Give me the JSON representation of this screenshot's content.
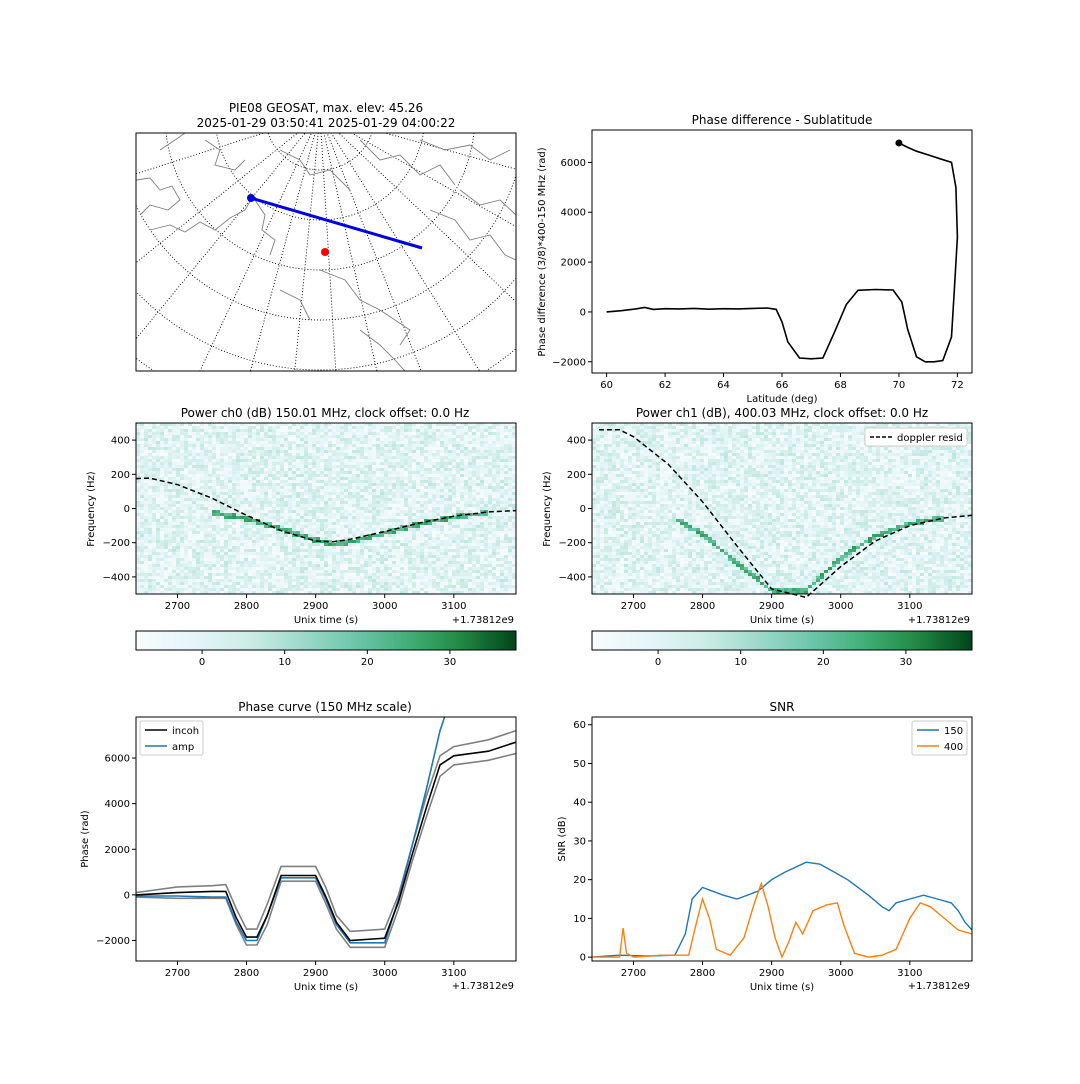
{
  "map_panel": {
    "title_line1": "PIE08 GEOSAT, max. elev: 45.26",
    "title_line2": "2025-01-29 03:50:41 2025-01-29 04:00:22",
    "colors": {
      "track": "#0000dd",
      "station": "#ff0000",
      "coast": "#888888",
      "grid": "#000000"
    }
  },
  "phase_sublat": {
    "title": "Phase difference - Sublatitude",
    "xlabel": "Latitude (deg)",
    "ylabel": "Phase difference (3/8)*400-150 MHz (rad)",
    "xticks": [
      "60",
      "62",
      "64",
      "66",
      "68",
      "70",
      "72"
    ],
    "yticks": [
      "−2000",
      "0",
      "2000",
      "4000",
      "6000"
    ]
  },
  "power_ch0": {
    "title": "Power ch0 (dB) 150.01 MHz, clock offset: 0.0 Hz",
    "xlabel": "Unix time (s)",
    "ylabel": "Frequency (Hz)",
    "offset_text": "+1.73812e9",
    "xticks": [
      "2700",
      "2800",
      "2900",
      "3000",
      "3100"
    ],
    "yticks": [
      "400",
      "200",
      "0",
      "−200",
      "−400"
    ],
    "colorbar_ticks": [
      "0",
      "10",
      "20",
      "30"
    ]
  },
  "power_ch1": {
    "title": "Power ch1 (dB), 400.03 MHz, clock offset: 0.0 Hz",
    "xlabel": "Unix time (s)",
    "ylabel": "Frequency (Hz)",
    "offset_text": "+1.73812e9",
    "legend_label": "doppler resid",
    "xticks": [
      "2700",
      "2800",
      "2900",
      "3000",
      "3100"
    ],
    "yticks": [
      "400",
      "200",
      "0",
      "−200",
      "−400"
    ],
    "colorbar_ticks": [
      "0",
      "10",
      "20",
      "30"
    ]
  },
  "phase_curve": {
    "title": "Phase curve (150 MHz scale)",
    "xlabel": "Unix time (s)",
    "ylabel": "Phase (rad)",
    "offset_text": "+1.73812e9",
    "legend": [
      "incoh",
      "amp"
    ],
    "xticks": [
      "2700",
      "2800",
      "2900",
      "3000",
      "3100"
    ],
    "yticks": [
      "6000",
      "4000",
      "2000",
      "0",
      "−2000"
    ]
  },
  "snr": {
    "title": "SNR",
    "xlabel": "Unix time (s)",
    "ylabel": "SNR (dB)",
    "offset_text": "+1.73812e9",
    "legend": [
      "150",
      "400"
    ],
    "xticks": [
      "2700",
      "2800",
      "2900",
      "3000",
      "3100"
    ],
    "yticks": [
      "60",
      "50",
      "40",
      "30",
      "20",
      "10",
      "0"
    ]
  },
  "chart_data": [
    {
      "type": "line",
      "xlim": [
        59.5,
        72.5
      ],
      "ylim": [
        -2450,
        7300
      ],
      "series": [
        {
          "color": "#000000",
          "x": [
            60,
            60.5,
            61,
            61.3,
            61.6,
            62,
            62.5,
            63,
            63.5,
            64,
            64.5,
            65,
            65.5,
            65.8,
            66,
            66.2,
            66.6,
            67,
            67.4,
            67.8,
            68.2,
            68.6,
            69.2,
            69.8,
            70.1,
            70.3,
            70.6,
            70.9,
            71.2,
            71.5,
            71.8,
            71.9,
            72.0,
            71.95,
            71.8,
            71.4,
            71.0,
            70.6,
            70.3,
            70.0
          ],
          "y": [
            0,
            50,
            120,
            180,
            100,
            130,
            120,
            140,
            110,
            130,
            120,
            140,
            160,
            100,
            -400,
            -1200,
            -1850,
            -1880,
            -1850,
            -800,
            300,
            870,
            900,
            880,
            400,
            -700,
            -1800,
            -2000,
            -2000,
            -1950,
            -1000,
            1000,
            3000,
            5000,
            6000,
            6150,
            6300,
            6450,
            6600,
            6780
          ]
        }
      ],
      "markers": [
        {
          "x": 70.0,
          "y": 6780,
          "color": "#000000"
        }
      ]
    },
    {
      "type": "heatmap",
      "x_range": [
        2640,
        3190
      ],
      "y_range": [
        -500,
        500
      ],
      "colorbar_range": [
        -8,
        38
      ],
      "overlay": {
        "style": "dashed",
        "x": [
          2640,
          2660,
          2700,
          2750,
          2800,
          2850,
          2900,
          2925,
          2950,
          3000,
          3050,
          3100,
          3150,
          3190
        ],
        "y": [
          175,
          178,
          140,
          60,
          -40,
          -130,
          -190,
          -195,
          -180,
          -135,
          -85,
          -45,
          -20,
          -12
        ]
      },
      "signal_trace": {
        "x": [
          2750,
          2800,
          2850,
          2900,
          2925,
          2950,
          3000,
          3050,
          3100,
          3150
        ],
        "y": [
          -25,
          -60,
          -120,
          -185,
          -210,
          -195,
          -145,
          -90,
          -50,
          -25
        ]
      }
    },
    {
      "type": "heatmap",
      "x_range": [
        2640,
        3190
      ],
      "y_range": [
        -500,
        500
      ],
      "colorbar_range": [
        -8,
        38
      ],
      "overlay": {
        "style": "dashed",
        "name": "doppler resid",
        "x": [
          2650,
          2680,
          2700,
          2750,
          2800,
          2850,
          2900,
          2950,
          3000,
          3050,
          3100,
          3150,
          3190
        ],
        "y": [
          460,
          460,
          420,
          260,
          40,
          -220,
          -470,
          -520,
          -340,
          -190,
          -100,
          -55,
          -40
        ]
      },
      "signal_trace": {
        "x": [
          2760,
          2800,
          2850,
          2900,
          2950,
          3000,
          3050,
          3100,
          3150
        ],
        "y": [
          -60,
          -150,
          -320,
          -480,
          -480,
          -290,
          -160,
          -90,
          -55
        ]
      }
    },
    {
      "type": "line",
      "x_range": [
        2640,
        3190
      ],
      "ylim": [
        -2900,
        7800
      ],
      "series": [
        {
          "name": "incoh",
          "color": "#000000",
          "x": [
            2640,
            2700,
            2750,
            2770,
            2785,
            2800,
            2815,
            2830,
            2850,
            2900,
            2915,
            2930,
            2950,
            3000,
            3020,
            3040,
            3060,
            3080,
            3100,
            3150,
            3190
          ],
          "y": [
            0,
            100,
            150,
            150,
            -1000,
            -1850,
            -1850,
            -900,
            850,
            850,
            -100,
            -1200,
            -2000,
            -1900,
            -300,
            1800,
            3800,
            5700,
            6100,
            6300,
            6700
          ]
        },
        {
          "name": "amp",
          "color": "#1f77b4",
          "x": [
            2640,
            2700,
            2750,
            2770,
            2785,
            2800,
            2815,
            2830,
            2850,
            2900,
            2915,
            2930,
            2950,
            3000,
            3020,
            3040,
            3060,
            3080,
            3100
          ],
          "y": [
            -50,
            -50,
            -100,
            -100,
            -1200,
            -2000,
            -2000,
            -900,
            750,
            750,
            -200,
            -1300,
            -2100,
            -2100,
            -200,
            2200,
            4600,
            7200,
            9000
          ]
        },
        {
          "color": "#808080",
          "x": [
            2640,
            2700,
            2750,
            2770,
            2785,
            2800,
            2815,
            2830,
            2850,
            2900,
            2915,
            2930,
            2950,
            3000,
            3020,
            3040,
            3060,
            3080,
            3100,
            3150,
            3190
          ],
          "y": [
            100,
            350,
            400,
            450,
            -600,
            -1500,
            -1500,
            -400,
            1250,
            1250,
            300,
            -900,
            -1600,
            -1500,
            0,
            2200,
            4300,
            6100,
            6500,
            6800,
            7200
          ]
        },
        {
          "color": "#808080",
          "x": [
            2640,
            2700,
            2750,
            2770,
            2785,
            2800,
            2815,
            2830,
            2850,
            2900,
            2915,
            2930,
            2950,
            3000,
            3020,
            3040,
            3060,
            3080,
            3100,
            3150,
            3190
          ],
          "y": [
            -100,
            -150,
            -150,
            -150,
            -1300,
            -2200,
            -2200,
            -1300,
            600,
            600,
            -400,
            -1500,
            -2300,
            -2300,
            -600,
            1500,
            3400,
            5200,
            5700,
            5900,
            6200
          ]
        }
      ]
    },
    {
      "type": "line",
      "x_range": [
        2640,
        3190
      ],
      "ylim": [
        -1,
        62
      ],
      "series": [
        {
          "name": "150",
          "color": "#1f77b4",
          "x": [
            2640,
            2680,
            2720,
            2760,
            2775,
            2785,
            2800,
            2830,
            2850,
            2880,
            2900,
            2920,
            2950,
            2970,
            2990,
            3010,
            3040,
            3060,
            3070,
            3080,
            3100,
            3120,
            3140,
            3160,
            3170,
            3180,
            3190
          ],
          "y": [
            0,
            0.5,
            0.3,
            0.5,
            6,
            15,
            18,
            16,
            15,
            17,
            20,
            22,
            24.5,
            24,
            22,
            20,
            16,
            13,
            12,
            14,
            15,
            16,
            15,
            14,
            12,
            9,
            7
          ]
        },
        {
          "name": "400",
          "color": "#ff7f0e",
          "x": [
            2640,
            2680,
            2685,
            2690,
            2700,
            2740,
            2780,
            2790,
            2800,
            2810,
            2820,
            2840,
            2860,
            2875,
            2885,
            2895,
            2905,
            2915,
            2925,
            2935,
            2945,
            2960,
            2980,
            2995,
            3005,
            3020,
            3040,
            3060,
            3080,
            3100,
            3115,
            3130,
            3150,
            3170,
            3190
          ],
          "y": [
            0,
            0,
            7.5,
            1,
            0,
            0.5,
            0.5,
            8,
            15,
            10,
            2,
            0.5,
            5,
            14,
            19,
            13,
            5,
            0,
            4,
            9,
            6,
            12,
            13.5,
            14,
            8,
            1,
            0,
            0.5,
            2,
            10,
            14,
            13,
            10,
            7,
            6
          ]
        }
      ]
    }
  ]
}
